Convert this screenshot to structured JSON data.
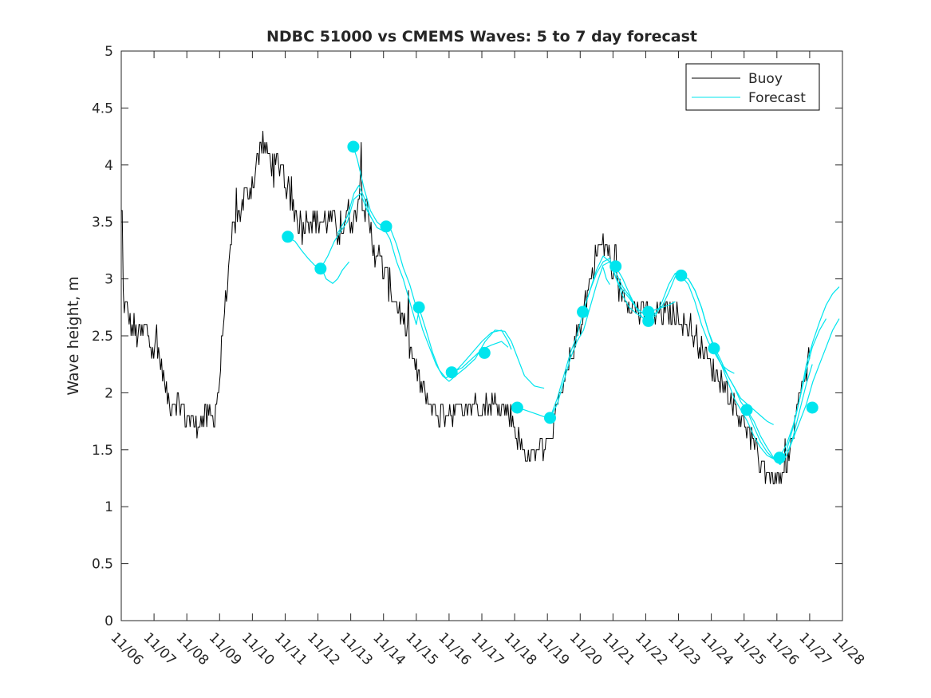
{
  "chart_data": {
    "type": "line",
    "title": "NDBC 51000 vs CMEMS Waves: 5 to 7 day forecast",
    "xlabel": "",
    "ylabel": "Wave height, m",
    "xlim": [
      0,
      22
    ],
    "ylim": [
      0,
      5
    ],
    "x_ticks": [
      0,
      1,
      2,
      3,
      4,
      5,
      6,
      7,
      8,
      9,
      10,
      11,
      12,
      13,
      14,
      15,
      16,
      17,
      18,
      19,
      20,
      21,
      22
    ],
    "x_tick_labels": [
      "11/06",
      "11/07",
      "11/08",
      "11/09",
      "11/10",
      "11/11",
      "11/12",
      "11/13",
      "11/14",
      "11/15",
      "11/16",
      "11/17",
      "11/18",
      "11/19",
      "11/20",
      "11/21",
      "11/22",
      "11/23",
      "11/24",
      "11/25",
      "11/26",
      "11/27",
      "11/28"
    ],
    "y_ticks": [
      0,
      0.5,
      1,
      1.5,
      2,
      2.5,
      3,
      3.5,
      4,
      4.5,
      5
    ],
    "y_tick_labels": [
      "0",
      "0.5",
      "1",
      "1.5",
      "2",
      "2.5",
      "3",
      "3.5",
      "4",
      "4.5",
      "5"
    ],
    "legend": {
      "position": "top-right",
      "entries": [
        {
          "label": "Buoy",
          "color": "#000000"
        },
        {
          "label": "Forecast",
          "color": "#00e5ee"
        }
      ]
    },
    "buoy_trend": [
      [
        0.0,
        3.1
      ],
      [
        0.1,
        2.75
      ],
      [
        0.3,
        2.6
      ],
      [
        0.5,
        2.5
      ],
      [
        0.7,
        2.55
      ],
      [
        0.9,
        2.45
      ],
      [
        1.0,
        2.4
      ],
      [
        1.2,
        2.3
      ],
      [
        1.35,
        2.0
      ],
      [
        1.5,
        1.9
      ],
      [
        1.7,
        1.95
      ],
      [
        1.9,
        1.85
      ],
      [
        2.0,
        1.8
      ],
      [
        2.2,
        1.75
      ],
      [
        2.4,
        1.75
      ],
      [
        2.6,
        1.8
      ],
      [
        2.8,
        1.8
      ],
      [
        2.9,
        1.9
      ],
      [
        3.0,
        2.1
      ],
      [
        3.1,
        2.6
      ],
      [
        3.2,
        2.85
      ],
      [
        3.3,
        3.1
      ],
      [
        3.4,
        3.45
      ],
      [
        3.6,
        3.6
      ],
      [
        3.8,
        3.75
      ],
      [
        4.0,
        3.85
      ],
      [
        4.2,
        4.1
      ],
      [
        4.3,
        4.2
      ],
      [
        4.5,
        4.05
      ],
      [
        4.7,
        4.0
      ],
      [
        4.9,
        4.0
      ],
      [
        5.1,
        3.75
      ],
      [
        5.3,
        3.6
      ],
      [
        5.5,
        3.45
      ],
      [
        5.7,
        3.55
      ],
      [
        5.9,
        3.5
      ],
      [
        6.1,
        3.5
      ],
      [
        6.3,
        3.55
      ],
      [
        6.5,
        3.45
      ],
      [
        6.7,
        3.4
      ],
      [
        6.9,
        3.6
      ],
      [
        7.1,
        3.5
      ],
      [
        7.3,
        3.85
      ],
      [
        7.5,
        3.55
      ],
      [
        7.7,
        3.3
      ],
      [
        7.9,
        3.15
      ],
      [
        8.1,
        3.0
      ],
      [
        8.3,
        2.85
      ],
      [
        8.5,
        2.7
      ],
      [
        8.7,
        2.5
      ],
      [
        8.9,
        2.3
      ],
      [
        9.1,
        2.1
      ],
      [
        9.3,
        1.95
      ],
      [
        9.5,
        1.85
      ],
      [
        9.7,
        1.8
      ],
      [
        10.0,
        1.85
      ],
      [
        10.3,
        1.85
      ],
      [
        10.6,
        1.9
      ],
      [
        10.9,
        1.9
      ],
      [
        11.2,
        1.9
      ],
      [
        11.5,
        1.9
      ],
      [
        11.8,
        1.85
      ],
      [
        12.0,
        1.7
      ],
      [
        12.2,
        1.55
      ],
      [
        12.4,
        1.45
      ],
      [
        12.6,
        1.45
      ],
      [
        12.8,
        1.55
      ],
      [
        13.0,
        1.6
      ],
      [
        13.2,
        1.75
      ],
      [
        13.4,
        1.95
      ],
      [
        13.6,
        2.15
      ],
      [
        13.8,
        2.4
      ],
      [
        14.0,
        2.6
      ],
      [
        14.2,
        2.85
      ],
      [
        14.4,
        3.1
      ],
      [
        14.6,
        3.3
      ],
      [
        14.8,
        3.3
      ],
      [
        15.0,
        3.05
      ],
      [
        15.2,
        2.9
      ],
      [
        15.4,
        2.85
      ],
      [
        15.6,
        2.75
      ],
      [
        15.8,
        2.7
      ],
      [
        16.0,
        2.7
      ],
      [
        16.2,
        2.65
      ],
      [
        16.4,
        2.7
      ],
      [
        16.6,
        2.7
      ],
      [
        16.8,
        2.65
      ],
      [
        17.0,
        2.7
      ],
      [
        17.2,
        2.6
      ],
      [
        17.4,
        2.55
      ],
      [
        17.6,
        2.45
      ],
      [
        17.8,
        2.35
      ],
      [
        18.0,
        2.25
      ],
      [
        18.2,
        2.15
      ],
      [
        18.4,
        2.05
      ],
      [
        18.6,
        1.95
      ],
      [
        18.8,
        1.85
      ],
      [
        19.0,
        1.75
      ],
      [
        19.2,
        1.6
      ],
      [
        19.4,
        1.45
      ],
      [
        19.6,
        1.35
      ],
      [
        19.8,
        1.25
      ],
      [
        20.0,
        1.25
      ],
      [
        20.2,
        1.25
      ],
      [
        20.4,
        1.5
      ],
      [
        20.6,
        1.8
      ],
      [
        20.8,
        2.1
      ],
      [
        21.0,
        2.35
      ]
    ],
    "forecast_runs": [
      [
        [
          5.05,
          3.37
        ],
        [
          5.3,
          3.33
        ],
        [
          5.5,
          3.25
        ],
        [
          5.7,
          3.18
        ],
        [
          5.9,
          3.12
        ],
        [
          6.1,
          3.1
        ],
        [
          6.25,
          3.0
        ],
        [
          6.45,
          2.96
        ],
        [
          6.6,
          3.0
        ],
        [
          6.75,
          3.08
        ],
        [
          6.95,
          3.15
        ]
      ],
      [
        [
          6.1,
          3.1
        ],
        [
          6.3,
          3.2
        ],
        [
          6.5,
          3.33
        ],
        [
          6.7,
          3.42
        ],
        [
          6.9,
          3.5
        ],
        [
          7.1,
          3.7
        ],
        [
          7.3,
          3.75
        ],
        [
          7.5,
          3.6
        ],
        [
          7.7,
          3.5
        ]
      ],
      [
        [
          6.6,
          3.4
        ],
        [
          6.9,
          3.55
        ],
        [
          7.1,
          3.75
        ],
        [
          7.25,
          3.82
        ],
        [
          7.4,
          3.72
        ],
        [
          7.6,
          3.55
        ],
        [
          7.8,
          3.45
        ],
        [
          8.0,
          3.42
        ]
      ],
      [
        [
          7.08,
          4.16
        ],
        [
          7.2,
          4.05
        ],
        [
          7.4,
          3.8
        ],
        [
          7.6,
          3.6
        ],
        [
          7.8,
          3.5
        ],
        [
          8.0,
          3.45
        ],
        [
          8.2,
          3.35
        ],
        [
          8.4,
          3.15
        ],
        [
          8.6,
          3.0
        ],
        [
          8.8,
          2.8
        ],
        [
          9.0,
          2.6
        ],
        [
          9.1,
          2.75
        ]
      ],
      [
        [
          8.08,
          3.46
        ],
        [
          8.2,
          3.45
        ],
        [
          8.4,
          3.3
        ],
        [
          8.6,
          3.1
        ],
        [
          8.8,
          2.95
        ],
        [
          9.0,
          2.75
        ],
        [
          9.2,
          2.55
        ],
        [
          9.4,
          2.4
        ],
        [
          9.6,
          2.25
        ],
        [
          9.8,
          2.15
        ],
        [
          10.0,
          2.1
        ],
        [
          10.2,
          2.15
        ],
        [
          10.5,
          2.22
        ],
        [
          10.8,
          2.3
        ],
        [
          11.1,
          2.45
        ],
        [
          11.4,
          2.55
        ],
        [
          11.7,
          2.54
        ],
        [
          11.9,
          2.45
        ],
        [
          12.1,
          2.3
        ],
        [
          12.3,
          2.15
        ],
        [
          12.6,
          2.06
        ],
        [
          12.9,
          2.04
        ]
      ],
      [
        [
          9.08,
          2.75
        ],
        [
          9.3,
          2.55
        ],
        [
          9.5,
          2.35
        ],
        [
          9.7,
          2.2
        ],
        [
          9.9,
          2.13
        ],
        [
          10.1,
          2.16
        ],
        [
          10.4,
          2.25
        ],
        [
          10.7,
          2.35
        ],
        [
          11.0,
          2.45
        ],
        [
          11.3,
          2.53
        ],
        [
          11.6,
          2.55
        ],
        [
          11.8,
          2.45
        ],
        [
          11.9,
          2.38
        ]
      ],
      [
        [
          10.1,
          2.18
        ],
        [
          10.4,
          2.22
        ],
        [
          10.7,
          2.3
        ],
        [
          11.0,
          2.38
        ],
        [
          11.3,
          2.42
        ],
        [
          11.6,
          2.45
        ],
        [
          11.8,
          2.4
        ]
      ],
      [
        [
          12.06,
          1.87
        ],
        [
          12.3,
          1.85
        ],
        [
          12.6,
          1.82
        ],
        [
          12.9,
          1.79
        ],
        [
          13.08,
          1.78
        ],
        [
          13.3,
          1.9
        ],
        [
          13.5,
          2.1
        ],
        [
          13.7,
          2.3
        ],
        [
          13.9,
          2.45
        ],
        [
          14.1,
          2.55
        ],
        [
          14.3,
          2.75
        ],
        [
          14.5,
          2.95
        ],
        [
          14.7,
          3.12
        ],
        [
          14.9,
          3.15
        ],
        [
          15.1,
          3.0
        ],
        [
          15.3,
          2.85
        ],
        [
          15.5,
          2.75
        ],
        [
          15.7,
          2.7
        ],
        [
          15.9,
          2.66
        ],
        [
          16.1,
          2.65
        ]
      ],
      [
        [
          13.08,
          1.78
        ],
        [
          13.3,
          1.95
        ],
        [
          13.5,
          2.15
        ],
        [
          13.7,
          2.35
        ],
        [
          13.9,
          2.5
        ],
        [
          14.08,
          2.7
        ],
        [
          14.3,
          2.9
        ],
        [
          14.5,
          3.08
        ],
        [
          14.7,
          3.2
        ],
        [
          14.9,
          3.15
        ],
        [
          15.1,
          3.05
        ],
        [
          15.3,
          2.93
        ],
        [
          15.5,
          2.85
        ],
        [
          15.7,
          2.75
        ],
        [
          15.9,
          2.7
        ],
        [
          16.08,
          2.71
        ],
        [
          16.3,
          2.73
        ],
        [
          16.5,
          2.75
        ],
        [
          16.7,
          2.77
        ],
        [
          16.9,
          2.8
        ]
      ],
      [
        [
          14.08,
          2.71
        ],
        [
          14.3,
          2.9
        ],
        [
          14.5,
          3.05
        ],
        [
          14.7,
          3.15
        ],
        [
          14.9,
          3.18
        ],
        [
          15.1,
          3.0
        ],
        [
          15.3,
          2.9
        ],
        [
          15.5,
          2.83
        ],
        [
          15.7,
          2.75
        ],
        [
          15.9,
          2.7
        ],
        [
          16.1,
          2.7
        ]
      ],
      [
        [
          14.7,
          3.1
        ],
        [
          14.8,
          3.0
        ],
        [
          14.9,
          2.95
        ]
      ],
      [
        [
          15.08,
          3.11
        ],
        [
          15.3,
          3.0
        ],
        [
          15.5,
          2.87
        ],
        [
          15.7,
          2.75
        ],
        [
          15.9,
          2.66
        ],
        [
          16.08,
          2.63
        ],
        [
          16.3,
          2.68
        ],
        [
          16.5,
          2.8
        ],
        [
          16.7,
          2.95
        ],
        [
          16.9,
          3.05
        ],
        [
          17.08,
          3.03
        ],
        [
          17.3,
          2.95
        ],
        [
          17.5,
          2.8
        ],
        [
          17.7,
          2.6
        ],
        [
          17.9,
          2.45
        ],
        [
          18.1,
          2.35
        ],
        [
          18.3,
          2.25
        ],
        [
          18.5,
          2.2
        ],
        [
          18.7,
          2.17
        ]
      ],
      [
        [
          16.08,
          2.63
        ],
        [
          16.3,
          2.7
        ],
        [
          16.5,
          2.76
        ],
        [
          16.7,
          2.88
        ],
        [
          16.9,
          3.02
        ],
        [
          17.08,
          3.03
        ],
        [
          17.3,
          3.0
        ],
        [
          17.5,
          2.9
        ],
        [
          17.7,
          2.75
        ],
        [
          17.9,
          2.55
        ],
        [
          18.08,
          2.39
        ],
        [
          18.3,
          2.25
        ],
        [
          18.5,
          2.15
        ],
        [
          18.7,
          2.05
        ],
        [
          18.9,
          1.92
        ],
        [
          19.08,
          1.85
        ],
        [
          19.3,
          1.75
        ],
        [
          19.5,
          1.62
        ],
        [
          19.7,
          1.52
        ],
        [
          19.9,
          1.43
        ],
        [
          20.1,
          1.38
        ],
        [
          20.3,
          1.45
        ],
        [
          20.5,
          1.62
        ],
        [
          20.7,
          1.85
        ],
        [
          20.9,
          2.08
        ],
        [
          21.08,
          2.25
        ]
      ],
      [
        [
          17.08,
          3.03
        ],
        [
          17.3,
          3.0
        ],
        [
          17.5,
          2.9
        ],
        [
          17.7,
          2.75
        ],
        [
          17.9,
          2.55
        ],
        [
          18.1,
          2.4
        ],
        [
          18.3,
          2.28
        ],
        [
          18.5,
          2.15
        ],
        [
          18.7,
          2.05
        ],
        [
          18.9,
          1.95
        ],
        [
          19.1,
          1.9
        ],
        [
          19.3,
          1.85
        ],
        [
          19.5,
          1.8
        ],
        [
          19.7,
          1.75
        ],
        [
          19.9,
          1.72
        ]
      ],
      [
        [
          18.08,
          2.39
        ],
        [
          18.3,
          2.25
        ],
        [
          18.5,
          2.1
        ],
        [
          18.7,
          1.95
        ],
        [
          18.9,
          1.85
        ],
        [
          19.1,
          1.75
        ],
        [
          19.3,
          1.62
        ],
        [
          19.5,
          1.52
        ],
        [
          19.7,
          1.45
        ],
        [
          19.9,
          1.42
        ],
        [
          20.1,
          1.37
        ],
        [
          20.3,
          1.45
        ],
        [
          20.5,
          1.6
        ],
        [
          20.7,
          1.75
        ],
        [
          20.9,
          1.9
        ],
        [
          21.1,
          2.1
        ],
        [
          21.3,
          2.25
        ],
        [
          21.5,
          2.4
        ],
        [
          21.7,
          2.55
        ],
        [
          21.9,
          2.65
        ]
      ],
      [
        [
          19.08,
          1.85
        ],
        [
          19.3,
          1.7
        ],
        [
          19.5,
          1.57
        ],
        [
          19.7,
          1.48
        ],
        [
          19.9,
          1.42
        ],
        [
          20.1,
          1.38
        ],
        [
          20.3,
          1.5
        ],
        [
          20.5,
          1.7
        ],
        [
          20.7,
          1.95
        ],
        [
          20.9,
          2.25
        ],
        [
          21.1,
          2.45
        ],
        [
          21.3,
          2.62
        ],
        [
          21.5,
          2.77
        ],
        [
          21.7,
          2.87
        ],
        [
          21.9,
          2.93
        ]
      ],
      [
        [
          20.08,
          1.43
        ],
        [
          20.3,
          1.55
        ],
        [
          20.5,
          1.72
        ],
        [
          20.7,
          1.95
        ],
        [
          20.9,
          2.2
        ],
        [
          21.08,
          2.4
        ],
        [
          21.3,
          2.55
        ],
        [
          21.5,
          2.65
        ]
      ]
    ],
    "forecast_start_points": [
      [
        5.08,
        3.37
      ],
      [
        6.08,
        3.09
      ],
      [
        7.08,
        4.16
      ],
      [
        8.08,
        3.46
      ],
      [
        9.08,
        2.75
      ],
      [
        10.08,
        2.18
      ],
      [
        11.08,
        2.35
      ],
      [
        12.08,
        1.87
      ],
      [
        13.08,
        1.78
      ],
      [
        14.08,
        2.71
      ],
      [
        15.08,
        3.11
      ],
      [
        16.08,
        2.71
      ],
      [
        16.08,
        2.63
      ],
      [
        17.08,
        3.03
      ],
      [
        18.08,
        2.39
      ],
      [
        19.08,
        1.85
      ],
      [
        20.08,
        1.43
      ],
      [
        21.08,
        1.87
      ]
    ]
  }
}
